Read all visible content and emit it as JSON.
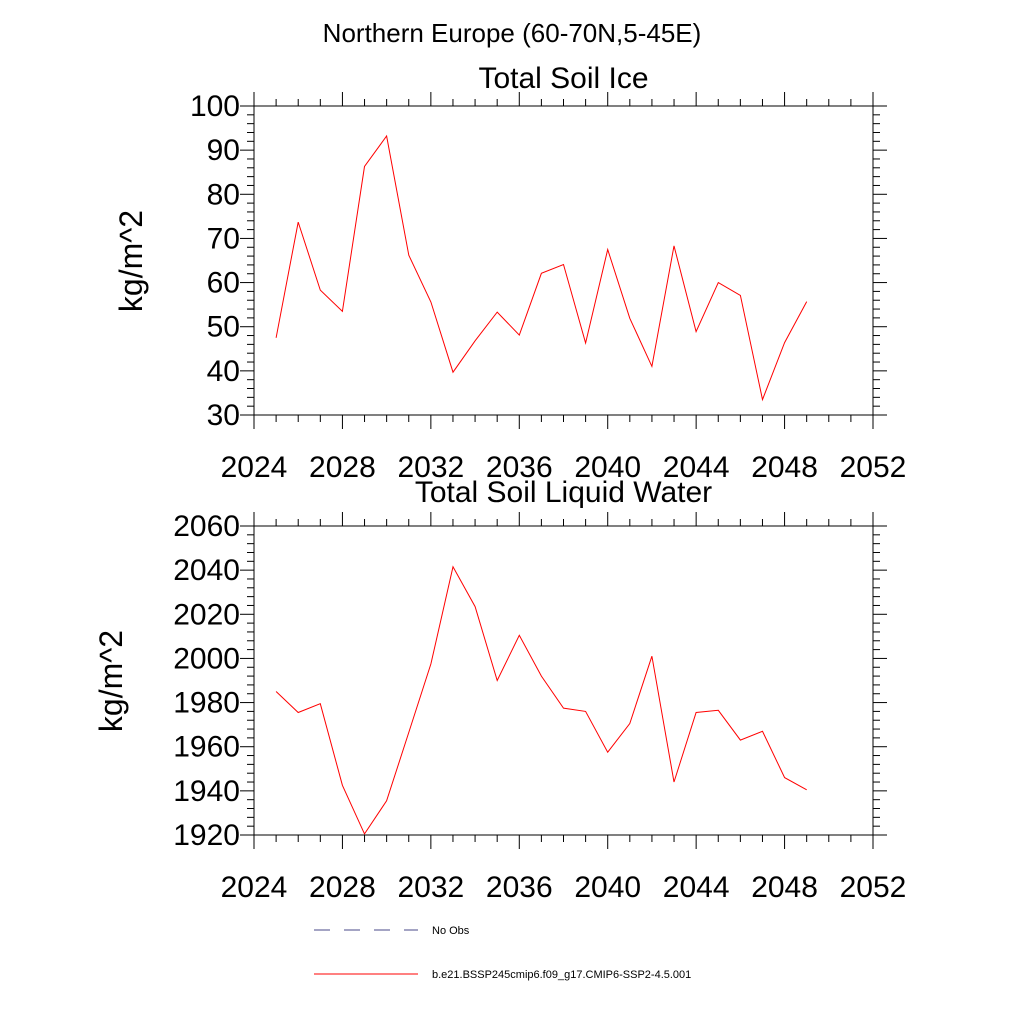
{
  "figure": {
    "suptitle": "Northern Europe (60-70N,5-45E)"
  },
  "colors": {
    "model_line": "#ff0000",
    "obs_line": "#4a4a8a",
    "axes": "#000000"
  },
  "legend": {
    "entries": [
      {
        "label": "No Obs",
        "style": "dashed"
      },
      {
        "label": "b.e21.BSSP245cmip6.f09_g17.CMIP6-SSP2-4.5.001",
        "style": "solid"
      }
    ]
  },
  "chart_data": [
    {
      "type": "line",
      "title": "Total Soil Ice",
      "xlabel": "",
      "ylabel": "kg/m^2",
      "xlim": [
        2024,
        2052
      ],
      "ylim": [
        30,
        100
      ],
      "xticks": [
        2024,
        2028,
        2032,
        2036,
        2040,
        2044,
        2048,
        2052
      ],
      "yticks": [
        30,
        40,
        50,
        60,
        70,
        80,
        90,
        100
      ],
      "grid": false,
      "series": [
        {
          "name": "b.e21.BSSP245cmip6.f09_g17.CMIP6-SSP2-4.5.001",
          "x": [
            2025,
            2026,
            2027,
            2028,
            2029,
            2030,
            2031,
            2032,
            2033,
            2034,
            2035,
            2036,
            2037,
            2038,
            2039,
            2040,
            2041,
            2042,
            2043,
            2044,
            2045,
            2046,
            2047,
            2048,
            2049
          ],
          "values": [
            47.5,
            73.7,
            58.3,
            53.5,
            86.3,
            93.2,
            66.2,
            55.6,
            39.7,
            46.8,
            53.3,
            48.1,
            62.1,
            64.1,
            46.3,
            67.5,
            51.9,
            41.0,
            68.3,
            48.9,
            60.0,
            57.1,
            33.5,
            46.4,
            55.7
          ]
        }
      ]
    },
    {
      "type": "line",
      "title": "Total Soil Liquid Water",
      "xlabel": "",
      "ylabel": "kg/m^2",
      "xlim": [
        2024,
        2052
      ],
      "ylim": [
        1920,
        2060
      ],
      "xticks": [
        2024,
        2028,
        2032,
        2036,
        2040,
        2044,
        2048,
        2052
      ],
      "yticks": [
        1920,
        1940,
        1960,
        1980,
        2000,
        2020,
        2040,
        2060
      ],
      "grid": false,
      "series": [
        {
          "name": "b.e21.BSSP245cmip6.f09_g17.CMIP6-SSP2-4.5.001",
          "x": [
            2025,
            2026,
            2027,
            2028,
            2029,
            2030,
            2031,
            2032,
            2033,
            2034,
            2035,
            2036,
            2037,
            2038,
            2039,
            2040,
            2041,
            2042,
            2043,
            2044,
            2045,
            2046,
            2047,
            2048,
            2049
          ],
          "values": [
            1985.0,
            1975.5,
            1979.5,
            1942.5,
            1920.5,
            1935.5,
            1966.5,
            1997.5,
            2041.5,
            2023.5,
            1990.0,
            2010.5,
            1992.0,
            1977.5,
            1976.0,
            1957.5,
            1970.5,
            2001.0,
            1944.0,
            1975.5,
            1976.5,
            1963.0,
            1967.0,
            1946.0,
            1940.5
          ]
        }
      ]
    }
  ]
}
